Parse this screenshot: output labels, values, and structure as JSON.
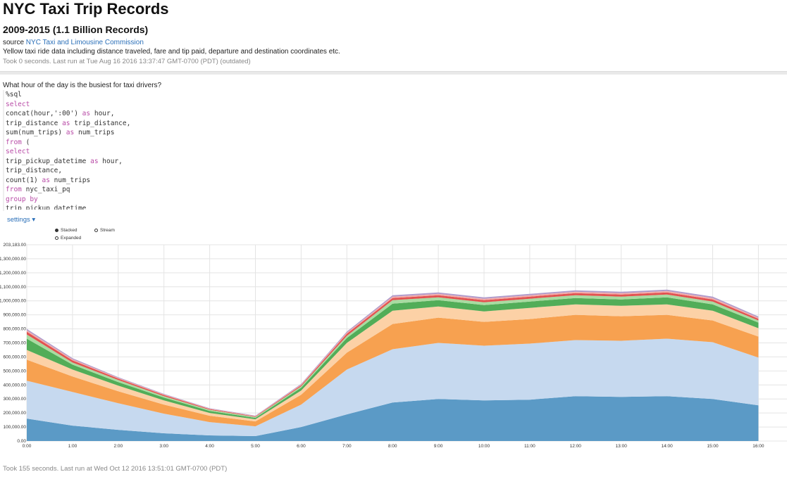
{
  "header": {
    "title": "NYC Taxi Trip Records",
    "subtitle": "2009-2015 (1.1 Billion Records)",
    "source_prefix": "source",
    "source_link": "NYC Taxi and Limousine Commission",
    "description": "Yellow taxi ride data including distance traveled, fare and tip paid, departure and destination coordinates etc.",
    "took": "Took 0 seconds. Last run at Tue Aug 16 2016 13:37:47 GMT-0700 (PDT) (outdated)"
  },
  "paragraph": {
    "question": "What hour of the day is the busiest for taxi drivers?",
    "code_lines": [
      [
        {
          "t": "%sql",
          "k": false
        }
      ],
      [
        {
          "t": "select",
          "k": true
        }
      ],
      [
        {
          "t": "concat(hour,':00') ",
          "k": false
        },
        {
          "t": "as",
          "k": true
        },
        {
          "t": " hour,",
          "k": false
        }
      ],
      [
        {
          "t": "trip_distance ",
          "k": false
        },
        {
          "t": "as",
          "k": true
        },
        {
          "t": " trip_distance,",
          "k": false
        }
      ],
      [
        {
          "t": "sum(num_trips) ",
          "k": false
        },
        {
          "t": "as",
          "k": true
        },
        {
          "t": " num_trips",
          "k": false
        }
      ],
      [
        {
          "t": "from",
          "k": true
        },
        {
          "t": " (",
          "k": false
        }
      ],
      [
        {
          "t": "select",
          "k": true
        }
      ],
      [
        {
          "t": "trip_pickup_datetime ",
          "k": false
        },
        {
          "t": "as",
          "k": true
        },
        {
          "t": " hour,",
          "k": false
        }
      ],
      [
        {
          "t": "trip_distance,",
          "k": false
        }
      ],
      [
        {
          "t": "count(1) ",
          "k": false
        },
        {
          "t": "as",
          "k": true
        },
        {
          "t": " num_trips",
          "k": false
        }
      ],
      [
        {
          "t": "from",
          "k": true
        },
        {
          "t": " nyc_taxi_pq",
          "k": false
        }
      ],
      [
        {
          "t": "group by",
          "k": true
        }
      ],
      [
        {
          "t": "trip_pickup_datetime",
          "k": false
        }
      ]
    ],
    "settings_label": "settings",
    "settings_caret": "▾",
    "modes": {
      "stacked": "Stacked",
      "stream": "Stream",
      "expanded": "Expanded"
    },
    "selected_mode": "stacked",
    "took": "Took 155 seconds. Last run at Wed Oct 12 2016 13:51:01 GMT-0700 (PDT)"
  },
  "chart_data": {
    "type": "area",
    "stacked": true,
    "y_top_label": "203,183.00",
    "y_tick_labels": [
      "0.00",
      "100,000.00",
      "200,000.00",
      "300,000.00",
      "400,000.00",
      "500,000.00",
      "600,000.00",
      "700,000.00",
      "800,000.00",
      "900,000.00",
      "1,000,000.00",
      "1,100,000.00",
      "1,200,000.00",
      "1,300,000.00"
    ],
    "ylim": [
      0,
      1400000
    ],
    "categories": [
      "0:00",
      "1:00",
      "2:00",
      "3:00",
      "4:00",
      "5:00",
      "6:00",
      "7:00",
      "8:00",
      "9:00",
      "10:00",
      "11:00",
      "12:00",
      "13:00",
      "14:00",
      "15:00",
      "16:00"
    ],
    "series": [
      {
        "color": "#5b9ac6",
        "values": [
          160000,
          110000,
          80000,
          55000,
          40000,
          35000,
          100000,
          190000,
          275000,
          300000,
          290000,
          295000,
          320000,
          315000,
          320000,
          300000,
          255000
        ]
      },
      {
        "color": "#c6d9ef",
        "values": [
          270000,
          240000,
          190000,
          140000,
          95000,
          70000,
          160000,
          320000,
          380000,
          400000,
          390000,
          400000,
          400000,
          400000,
          410000,
          405000,
          340000
        ]
      },
      {
        "color": "#f7a150",
        "values": [
          150000,
          110000,
          85000,
          65000,
          45000,
          35000,
          70000,
          120000,
          180000,
          180000,
          170000,
          175000,
          180000,
          175000,
          170000,
          155000,
          150000
        ]
      },
      {
        "color": "#fcd1a6",
        "values": [
          70000,
          50000,
          40000,
          30000,
          20000,
          15000,
          30000,
          70000,
          95000,
          80000,
          75000,
          80000,
          75000,
          75000,
          75000,
          70000,
          60000
        ]
      },
      {
        "color": "#52ad58",
        "values": [
          80000,
          35000,
          25000,
          20000,
          15000,
          10000,
          20000,
          35000,
          50000,
          45000,
          45000,
          45000,
          45000,
          45000,
          50000,
          45000,
          40000
        ]
      },
      {
        "color": "#a9dba1",
        "values": [
          30000,
          15000,
          15000,
          10000,
          8000,
          6000,
          10000,
          15000,
          25000,
          20000,
          20000,
          20000,
          20000,
          20000,
          20000,
          20000,
          15000
        ]
      },
      {
        "color": "#e25250",
        "values": [
          20000,
          15000,
          10000,
          8000,
          5000,
          4000,
          8000,
          15000,
          15000,
          15000,
          15000,
          15000,
          15000,
          15000,
          15000,
          15000,
          12000
        ]
      },
      {
        "color": "#f3aaa8",
        "values": [
          10000,
          8000,
          5000,
          4000,
          3000,
          3000,
          5000,
          8000,
          10000,
          10000,
          10000,
          10000,
          10000,
          10000,
          10000,
          10000,
          8000
        ]
      },
      {
        "color": "#b09ccc",
        "values": [
          10000,
          8000,
          5000,
          4000,
          3000,
          3000,
          5000,
          8000,
          10000,
          10000,
          10000,
          10000,
          10000,
          10000,
          10000,
          10000,
          8000
        ]
      }
    ],
    "grid": true
  }
}
